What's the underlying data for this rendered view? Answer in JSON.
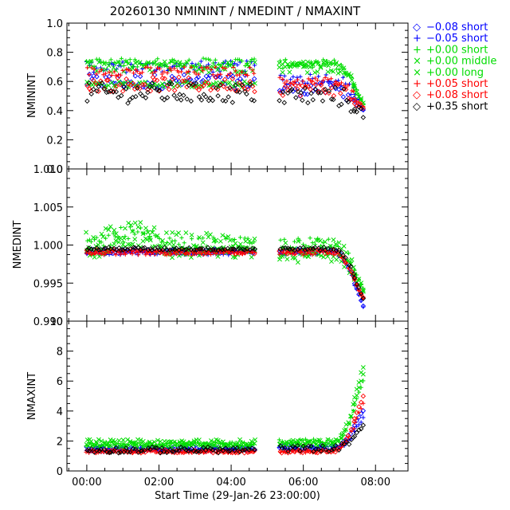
{
  "title": "20260130 NMININT / NMEDINT / NMAXINT",
  "xlabel": "Start Time (29-Jan-26 23:00:00)",
  "x_ticks": [
    "00:00",
    "02:00",
    "04:00",
    "06:00",
    "08:00"
  ],
  "legend": [
    {
      "symbol": "◇",
      "label": "−0.08 short",
      "color": "#0000ff"
    },
    {
      "symbol": "+",
      "label": "−0.05 short",
      "color": "#0000ff"
    },
    {
      "symbol": "+",
      "label": "+0.00 short",
      "color": "#00dd00"
    },
    {
      "symbol": "×",
      "label": "+0.00 middle",
      "color": "#00dd00"
    },
    {
      "symbol": "×",
      "label": "+0.00 long",
      "color": "#00dd00"
    },
    {
      "symbol": "+",
      "label": "+0.05 short",
      "color": "#ff0000"
    },
    {
      "symbol": "◇",
      "label": "+0.08 short",
      "color": "#ff0000"
    },
    {
      "symbol": "◇",
      "label": "+0.35 short",
      "color": "#000000"
    }
  ],
  "chart_data": [
    {
      "type": "scatter",
      "ylabel": "NMININT",
      "xlim_hours": [
        -0.55,
        8.9
      ],
      "ylim": [
        0.0,
        1.0
      ],
      "y_ticks": [
        "0.0",
        "0.2",
        "0.4",
        "0.6",
        "0.8",
        "1.0"
      ],
      "y_tick_values": [
        0.0,
        0.2,
        0.4,
        0.6,
        0.8,
        1.0
      ],
      "series": [
        {
          "name": "−0.08 short",
          "marker": "diamond",
          "color": "#0000ff",
          "base": 0.6,
          "spread": 0.05,
          "base2": 0.55,
          "end": 0.4
        },
        {
          "name": "−0.05 short",
          "marker": "plus",
          "color": "#0000ff",
          "base": 0.7,
          "spread": 0.04,
          "base2": 0.62,
          "end": 0.42
        },
        {
          "name": "+0.00 short",
          "marker": "plus",
          "color": "#00dd00",
          "base": 0.73,
          "spread": 0.03,
          "base2": 0.72,
          "end": 0.45
        },
        {
          "name": "+0.00 middle",
          "marker": "x",
          "color": "#00dd00",
          "base": 0.7,
          "spread": 0.04,
          "base2": 0.7,
          "end": 0.45
        },
        {
          "name": "+0.00 long",
          "marker": "x",
          "color": "#00dd00",
          "base": 0.58,
          "spread": 0.02,
          "base2": 0.72,
          "end": 0.45
        },
        {
          "name": "+0.05 short",
          "marker": "plus",
          "color": "#ff0000",
          "base": 0.67,
          "spread": 0.03,
          "base2": 0.6,
          "end": 0.42
        },
        {
          "name": "+0.08 short",
          "marker": "diamond",
          "color": "#ff0000",
          "base": 0.58,
          "spread": 0.05,
          "base2": 0.55,
          "end": 0.4
        },
        {
          "name": "+0.35 short",
          "marker": "diamond",
          "color": "#000000",
          "base": 0.52,
          "spread": 0.07,
          "base2": 0.5,
          "end": 0.38
        }
      ]
    },
    {
      "type": "scatter",
      "ylabel": "NMEDINT",
      "xlim_hours": [
        -0.55,
        8.9
      ],
      "ylim": [
        0.99,
        1.01
      ],
      "y_ticks": [
        "0.990",
        "0.995",
        "1.000",
        "1.005",
        "1.010"
      ],
      "y_tick_values": [
        0.99,
        0.995,
        1.0,
        1.005,
        1.01
      ],
      "series": [
        {
          "name": "−0.08 short",
          "marker": "diamond",
          "color": "#0000ff",
          "base": 0.9992,
          "spread": 0.0003,
          "base2": 0.9992,
          "end": 0.992
        },
        {
          "name": "−0.05 short",
          "marker": "plus",
          "color": "#0000ff",
          "base": 0.999,
          "spread": 0.0003,
          "base2": 0.999,
          "end": 0.992
        },
        {
          "name": "+0.00 short",
          "marker": "plus",
          "color": "#00dd00",
          "base": 1.0,
          "spread": 0.001,
          "base2": 1.0,
          "end": 0.994
        },
        {
          "name": "+0.00 middle",
          "marker": "x",
          "color": "#00dd00",
          "base": 1.0005,
          "spread": 0.0012,
          "base2": 0.9995,
          "end": 0.994
        },
        {
          "name": "+0.00 long",
          "marker": "x",
          "color": "#00dd00",
          "base": 0.999,
          "spread": 0.0008,
          "base2": 0.9985,
          "end": 0.994
        },
        {
          "name": "+0.05 short",
          "marker": "plus",
          "color": "#ff0000",
          "base": 0.999,
          "spread": 0.0003,
          "base2": 0.999,
          "end": 0.993
        },
        {
          "name": "+0.08 short",
          "marker": "diamond",
          "color": "#ff0000",
          "base": 0.9991,
          "spread": 0.0003,
          "base2": 0.9991,
          "end": 0.993
        },
        {
          "name": "+0.35 short",
          "marker": "diamond",
          "color": "#000000",
          "base": 0.9995,
          "spread": 0.0002,
          "base2": 0.9995,
          "end": 0.993
        }
      ]
    },
    {
      "type": "scatter",
      "ylabel": "NMAXINT",
      "xlim_hours": [
        -0.55,
        8.9
      ],
      "ylim": [
        0,
        10
      ],
      "y_ticks": [
        "0",
        "2",
        "4",
        "6",
        "8",
        "10"
      ],
      "y_tick_values": [
        0,
        2,
        4,
        6,
        8,
        10
      ],
      "series": [
        {
          "name": "−0.08 short",
          "marker": "diamond",
          "color": "#0000ff",
          "base": 1.5,
          "spread": 0.15,
          "base2": 1.6,
          "end": 4.0
        },
        {
          "name": "−0.05 short",
          "marker": "plus",
          "color": "#0000ff",
          "base": 1.4,
          "spread": 0.15,
          "base2": 1.5,
          "end": 3.5
        },
        {
          "name": "+0.00 short",
          "marker": "plus",
          "color": "#00dd00",
          "base": 1.8,
          "spread": 0.15,
          "base2": 2.0,
          "end": 6.0
        },
        {
          "name": "+0.00 middle",
          "marker": "x",
          "color": "#00dd00",
          "base": 1.9,
          "spread": 0.2,
          "base2": 1.9,
          "end": 7.0
        },
        {
          "name": "+0.00 long",
          "marker": "x",
          "color": "#00dd00",
          "base": 1.7,
          "spread": 0.15,
          "base2": 1.8,
          "end": 6.5
        },
        {
          "name": "+0.05 short",
          "marker": "plus",
          "color": "#ff0000",
          "base": 1.3,
          "spread": 0.1,
          "base2": 1.3,
          "end": 4.5
        },
        {
          "name": "+0.08 short",
          "marker": "diamond",
          "color": "#ff0000",
          "base": 1.3,
          "spread": 0.1,
          "base2": 1.3,
          "end": 5.0
        },
        {
          "name": "+0.35 short",
          "marker": "diamond",
          "color": "#000000",
          "base": 1.4,
          "spread": 0.2,
          "base2": 1.5,
          "end": 3.0
        }
      ]
    }
  ]
}
